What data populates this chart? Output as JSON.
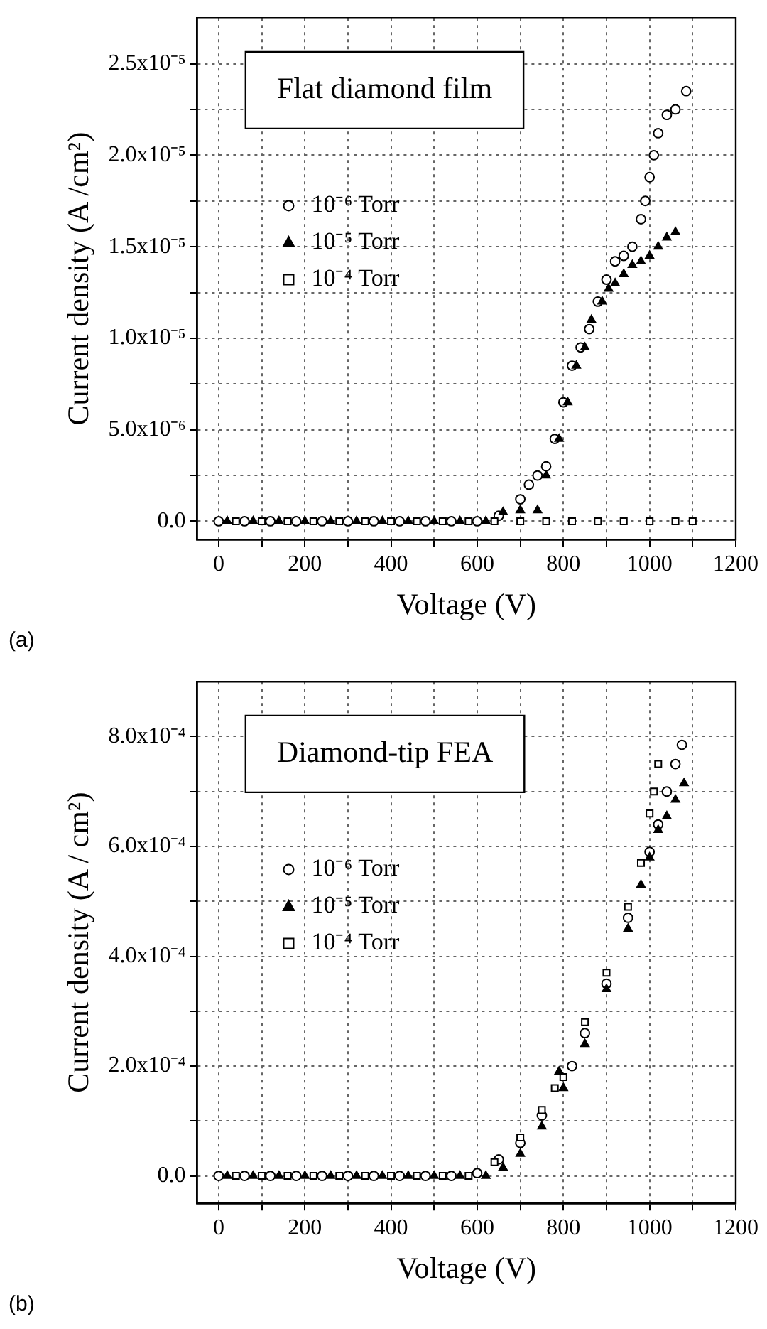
{
  "chart_data": [
    {
      "type": "scatter",
      "title": "Flat diamond film",
      "xlabel": "Voltage (V)",
      "ylabel": "Current density (A /cm²)",
      "xlim": [
        -50,
        1200
      ],
      "xticks": [
        0,
        {
          "value": 100,
          "label": null
        },
        200,
        {
          "value": 300,
          "label": null
        },
        400,
        {
          "value": 500,
          "label": null
        },
        600,
        {
          "value": 700,
          "label": null
        },
        800,
        {
          "value": 900,
          "label": null
        },
        1000,
        {
          "value": 1100,
          "label": null
        },
        1200
      ],
      "ylim": [
        -1e-06,
        2.75e-05
      ],
      "yticks": [
        {
          "value": 0,
          "label": "0.0"
        },
        {
          "value": 2.5e-06,
          "label": null
        },
        {
          "value": 5e-06,
          "label": "5.0x10⁻⁶"
        },
        {
          "value": 7.5e-06,
          "label": null
        },
        {
          "value": 1e-05,
          "label": "1.0x10⁻⁵"
        },
        {
          "value": 1.25e-05,
          "label": null
        },
        {
          "value": 1.5e-05,
          "label": "1.5x10⁻⁵"
        },
        {
          "value": 1.75e-05,
          "label": null
        },
        {
          "value": 2e-05,
          "label": "2.0x10⁻⁵"
        },
        {
          "value": 2.25e-05,
          "label": null
        },
        {
          "value": 2.5e-05,
          "label": "2.5x10⁻⁵"
        }
      ],
      "grid": true,
      "legend": "left",
      "annotations": [
        "(a)"
      ],
      "series": [
        {
          "name": "10⁻⁶ Torr",
          "color": "#000000",
          "marker": "circle",
          "x": [
            0,
            60,
            120,
            180,
            240,
            300,
            360,
            420,
            480,
            540,
            600,
            650,
            700,
            720,
            740,
            760,
            780,
            800,
            820,
            840,
            860,
            880,
            900,
            920,
            940,
            960,
            980,
            990,
            1000,
            1010,
            1020,
            1040,
            1060,
            1085
          ],
          "values": [
            0,
            0,
            0,
            0,
            0,
            0,
            0,
            0,
            0,
            0,
            0,
            3e-07,
            1.2e-06,
            2e-06,
            2.5e-06,
            3e-06,
            4.5e-06,
            6.5e-06,
            8.5e-06,
            9.5e-06,
            1.05e-05,
            1.2e-05,
            1.32e-05,
            1.42e-05,
            1.45e-05,
            1.5e-05,
            1.65e-05,
            1.75e-05,
            1.88e-05,
            2e-05,
            2.12e-05,
            2.22e-05,
            2.25e-05,
            2.35e-05
          ]
        },
        {
          "name": "10⁻⁵ Torr",
          "color": "#000000",
          "marker": "triangle",
          "x": [
            20,
            80,
            140,
            200,
            260,
            320,
            380,
            440,
            500,
            560,
            620,
            660,
            700,
            740,
            760,
            790,
            810,
            830,
            850,
            865,
            890,
            905,
            920,
            940,
            960,
            980,
            1000,
            1020,
            1040,
            1060
          ],
          "values": [
            0,
            0,
            0,
            0,
            0,
            0,
            0,
            0,
            0,
            0,
            0,
            5e-07,
            6e-07,
            6e-07,
            2.5e-06,
            4.5e-06,
            6.5e-06,
            8.5e-06,
            9.5e-06,
            1.1e-05,
            1.2e-05,
            1.27e-05,
            1.3e-05,
            1.35e-05,
            1.4e-05,
            1.42e-05,
            1.45e-05,
            1.5e-05,
            1.55e-05,
            1.58e-05
          ]
        },
        {
          "name": "10⁻⁴ Torr",
          "color": "#000000",
          "marker": "square",
          "x": [
            40,
            100,
            160,
            220,
            280,
            340,
            400,
            460,
            520,
            580,
            640,
            700,
            760,
            820,
            880,
            940,
            1000,
            1060,
            1100
          ],
          "values": [
            0,
            0,
            0,
            0,
            0,
            0,
            0,
            0,
            0,
            0,
            0,
            0,
            0,
            0,
            0,
            0,
            0,
            0,
            0
          ]
        }
      ]
    },
    {
      "type": "scatter",
      "title": "Diamond-tip FEA",
      "xlabel": "Voltage (V)",
      "ylabel": "Current density (A / cm²)",
      "xlim": [
        -50,
        1200
      ],
      "xticks": [
        0,
        {
          "value": 100,
          "label": null
        },
        200,
        {
          "value": 300,
          "label": null
        },
        400,
        {
          "value": 500,
          "label": null
        },
        600,
        {
          "value": 700,
          "label": null
        },
        800,
        {
          "value": 900,
          "label": null
        },
        1000,
        {
          "value": 1100,
          "label": null
        },
        1200
      ],
      "ylim": [
        -5e-05,
        0.0009
      ],
      "yticks": [
        {
          "value": 0,
          "label": "0.0"
        },
        {
          "value": 0.0001,
          "label": null
        },
        {
          "value": 0.0002,
          "label": "2.0x10⁻⁴"
        },
        {
          "value": 0.0003,
          "label": null
        },
        {
          "value": 0.0004,
          "label": "4.0x10⁻⁴"
        },
        {
          "value": 0.0005,
          "label": null
        },
        {
          "value": 0.0006,
          "label": "6.0x10⁻⁴"
        },
        {
          "value": 0.0007,
          "label": null
        },
        {
          "value": 0.0008,
          "label": "8.0x10⁻⁴"
        }
      ],
      "grid": true,
      "legend": "left",
      "annotations": [
        "(b)"
      ],
      "series": [
        {
          "name": "10⁻⁶ Torr",
          "color": "#000000",
          "marker": "circle",
          "x": [
            0,
            60,
            120,
            180,
            240,
            300,
            360,
            420,
            480,
            540,
            600,
            650,
            700,
            750,
            820,
            850,
            900,
            950,
            1000,
            1020,
            1040,
            1060,
            1075
          ],
          "values": [
            0,
            0,
            0,
            0,
            0,
            0,
            0,
            0,
            0,
            0,
            5e-06,
            3e-05,
            6e-05,
            0.00011,
            0.0002,
            0.00026,
            0.00035,
            0.00047,
            0.00059,
            0.00064,
            0.0007,
            0.00075,
            0.000785
          ]
        },
        {
          "name": "10⁻⁵ Torr",
          "color": "#000000",
          "marker": "triangle",
          "x": [
            20,
            80,
            140,
            200,
            260,
            320,
            380,
            440,
            500,
            560,
            620,
            660,
            700,
            750,
            790,
            800,
            850,
            900,
            950,
            980,
            1000,
            1020,
            1040,
            1060,
            1080
          ],
          "values": [
            0,
            0,
            0,
            0,
            0,
            0,
            0,
            0,
            0,
            0,
            0,
            1.5e-05,
            4e-05,
            9e-05,
            0.00019,
            0.00016,
            0.00024,
            0.00034,
            0.00045,
            0.00053,
            0.00058,
            0.00063,
            0.000655,
            0.000685,
            0.000715
          ]
        },
        {
          "name": "10⁻⁴ Torr",
          "color": "#000000",
          "marker": "square",
          "x": [
            40,
            100,
            160,
            220,
            280,
            340,
            400,
            460,
            520,
            580,
            640,
            700,
            750,
            780,
            800,
            850,
            900,
            950,
            980,
            1000,
            1010,
            1020
          ],
          "values": [
            0,
            0,
            0,
            0,
            0,
            0,
            0,
            0,
            0,
            0,
            2.5e-05,
            7e-05,
            0.00012,
            0.00016,
            0.00018,
            0.00028,
            0.00037,
            0.00049,
            0.00057,
            0.00066,
            0.0007,
            0.00075
          ]
        }
      ]
    }
  ]
}
